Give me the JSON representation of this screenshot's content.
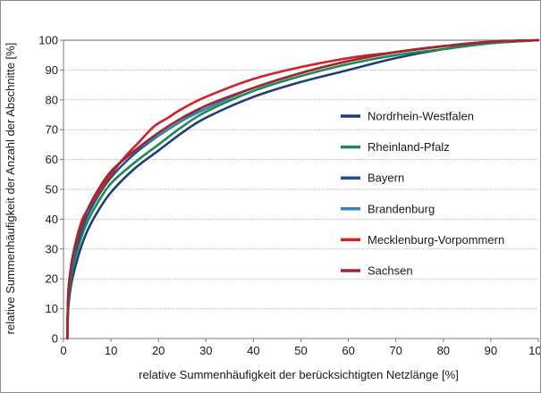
{
  "chart_data": {
    "type": "line",
    "title": "",
    "xlabel": "relative Summenhäufigkeit der berücksichtigten Netzlänge [%]",
    "ylabel": "relative Summenhäufigkeit der Anzahl der Abschnitte [%]",
    "xlim": [
      0,
      100
    ],
    "ylim": [
      0,
      100
    ],
    "xticks": [
      0,
      10,
      20,
      30,
      40,
      50,
      60,
      70,
      80,
      90,
      100
    ],
    "yticks": [
      0,
      10,
      20,
      30,
      40,
      50,
      60,
      70,
      80,
      90,
      100
    ],
    "grid": true,
    "legend_position": "center-right",
    "series": [
      {
        "name": "Nordrhein-Westfalen",
        "color": "#1f3d7a",
        "x": [
          0.8,
          1,
          1.5,
          2,
          3,
          4,
          5,
          7,
          10,
          15,
          20,
          25,
          30,
          40,
          50,
          60,
          70,
          80,
          90,
          100
        ],
        "y": [
          0,
          10,
          17,
          21,
          27,
          32,
          36,
          42,
          49,
          57,
          63,
          69,
          74,
          81,
          86,
          90,
          94,
          97,
          99,
          100
        ]
      },
      {
        "name": "Rheinland-Pfalz",
        "color": "#1c8a52",
        "x": [
          0.8,
          1,
          1.5,
          2,
          3,
          4,
          5,
          7,
          10,
          15,
          20,
          25,
          30,
          40,
          50,
          60,
          70,
          80,
          90,
          100
        ],
        "y": [
          0,
          12,
          19,
          24,
          30,
          35,
          39,
          45,
          52,
          59,
          65,
          71,
          76,
          83,
          88,
          92,
          95,
          97,
          99,
          100
        ]
      },
      {
        "name": "Bayern",
        "color": "#1e4f8f",
        "x": [
          0.8,
          1,
          1.5,
          2,
          3,
          4,
          5,
          7,
          10,
          15,
          20,
          25,
          30,
          40,
          50,
          60,
          70,
          80,
          90,
          100
        ],
        "y": [
          0,
          13,
          21,
          26,
          32,
          37,
          41,
          47,
          54,
          62,
          68,
          73,
          78,
          84,
          89,
          93,
          96,
          98,
          99.5,
          100
        ]
      },
      {
        "name": "Brandenburg",
        "color": "#2a87b8",
        "x": [
          0.8,
          1,
          1.5,
          2,
          3,
          4,
          5,
          7,
          10,
          15,
          20,
          25,
          30,
          40,
          50,
          60,
          70,
          80,
          90,
          100
        ],
        "y": [
          0,
          14,
          22,
          27,
          34,
          39,
          43,
          49,
          56,
          63,
          68,
          73,
          77,
          84,
          89,
          93,
          96,
          98,
          99.5,
          100
        ]
      },
      {
        "name": "Mecklenburg-Vorpommern",
        "color": "#d42027",
        "x": [
          0.8,
          1,
          1.5,
          2,
          3,
          4,
          5,
          7,
          10,
          13,
          16,
          19,
          22,
          25,
          30,
          40,
          50,
          60,
          70,
          80,
          90,
          100
        ],
        "y": [
          0,
          15,
          23,
          28,
          35,
          40,
          43,
          48,
          55,
          61,
          66,
          71,
          74,
          77,
          81,
          87,
          91,
          94,
          96,
          98,
          99.5,
          100
        ]
      },
      {
        "name": "Sachsen",
        "color": "#a3262d",
        "x": [
          0.8,
          1,
          1.5,
          2,
          3,
          4,
          5,
          7,
          10,
          15,
          20,
          25,
          30,
          40,
          50,
          60,
          70,
          80,
          90,
          100
        ],
        "y": [
          0,
          15,
          23,
          28,
          34,
          39,
          43,
          49,
          56,
          63,
          69,
          74,
          78,
          84,
          89,
          93,
          96,
          98,
          99.5,
          100
        ]
      }
    ]
  }
}
